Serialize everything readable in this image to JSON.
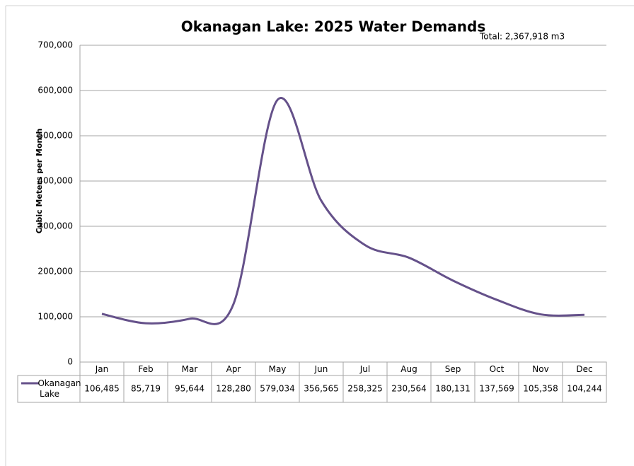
{
  "chart_data": {
    "type": "line",
    "title": "Okanagan Lake: 2025 Water Demands",
    "annotation": "Total: 2,367,918 m3",
    "y_label": "Cubic Meters per Month",
    "categories": [
      "Jan",
      "Feb",
      "Mar",
      "Apr",
      "May",
      "Jun",
      "Jul",
      "Aug",
      "Sep",
      "Oct",
      "Nov",
      "Dec"
    ],
    "series": [
      {
        "name": "Okanagan Lake",
        "color": "#65518a",
        "values": [
          106485,
          85719,
          95644,
          128280,
          579034,
          356565,
          258325,
          230564,
          180131,
          137569,
          105358,
          104244
        ],
        "value_labels": [
          "106,485",
          "85,719",
          "95,644",
          "128,280",
          "579,034",
          "356,565",
          "258,325",
          "230,564",
          "180,131",
          "137,569",
          "105,358",
          "104,244"
        ]
      }
    ],
    "ylim": [
      0,
      700000
    ],
    "yticks": [
      0,
      {
        "value": 100000,
        "label": "100,000"
      },
      {
        "value": 200000,
        "label": "200,000"
      },
      {
        "value": 300000,
        "label": "300,000"
      },
      {
        "value": 400000,
        "label": "400,000"
      },
      {
        "value": 500000,
        "label": "500,000"
      },
      {
        "value": 600000,
        "label": "600,000"
      },
      {
        "value": 700000,
        "label": "700,000"
      }
    ],
    "grid": true,
    "smooth": true
  }
}
